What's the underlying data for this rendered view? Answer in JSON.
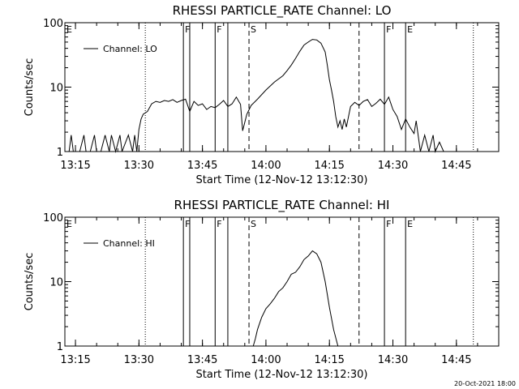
{
  "footer_date": "20-Oct-2021 18:00",
  "colors": {
    "line": "#000000",
    "background": "#ffffff"
  },
  "chart_data": [
    {
      "type": "line",
      "title": "RHESSI PARTICLE_RATE Channel: LO",
      "xlabel": "Start Time (12-Nov-12 13:12:30)",
      "ylabel": "Counts/sec",
      "yscale": "log",
      "ylim": [
        1,
        100
      ],
      "xlim": [
        "13:12:30",
        "14:55:00"
      ],
      "x_ticks": [
        "13:15",
        "13:30",
        "13:45",
        "14:00",
        "14:15",
        "14:30",
        "14:45"
      ],
      "y_ticks": [
        "1",
        "10",
        "100"
      ],
      "legend": {
        "position": "upper-left",
        "entries": [
          "Channel: LO"
        ]
      },
      "series": [
        {
          "name": "Channel: LO",
          "x": [
            "13:12:30",
            "13:13:30",
            "13:14:00",
            "13:14:30",
            "13:16:00",
            "13:17:00",
            "13:17:30",
            "13:18:30",
            "13:19:30",
            "13:20:00",
            "13:21:00",
            "13:22:00",
            "13:23:00",
            "13:23:30",
            "13:24:30",
            "13:25:30",
            "13:26:00",
            "13:27:30",
            "13:28:30",
            "13:29:00",
            "13:29:30",
            "13:30:00",
            "13:30:30",
            "13:31:00",
            "13:32:00",
            "13:33:00",
            "13:34:00",
            "13:35:00",
            "13:36:00",
            "13:37:00",
            "13:38:00",
            "13:39:00",
            "13:40:00",
            "13:41:00",
            "13:42:00",
            "13:43:00",
            "13:44:00",
            "13:45:00",
            "13:46:00",
            "13:47:00",
            "13:48:00",
            "13:49:00",
            "13:50:00",
            "13:51:00",
            "13:52:00",
            "13:53:00",
            "13:54:00",
            "13:54:30",
            "13:55:30",
            "13:56:30",
            "13:58:00",
            "14:00:00",
            "14:02:00",
            "14:04:00",
            "14:05:00",
            "14:06:00",
            "14:07:00",
            "14:08:00",
            "14:09:00",
            "14:10:00",
            "14:11:00",
            "14:12:00",
            "14:13:00",
            "14:14:00",
            "14:14:30",
            "14:15:00",
            "14:15:30",
            "14:16:00",
            "14:16:30",
            "14:17:00",
            "14:17:30",
            "14:18:00",
            "14:18:30",
            "14:19:00",
            "14:20:00",
            "14:21:00",
            "14:22:00",
            "14:23:00",
            "14:24:00",
            "14:25:00",
            "14:26:00",
            "14:27:00",
            "14:28:00",
            "14:29:00",
            "14:30:00",
            "14:31:00",
            "14:32:00",
            "14:33:00",
            "14:34:00",
            "14:35:00",
            "14:35:30",
            "14:36:30",
            "14:37:30",
            "14:38:30",
            "14:39:30",
            "14:40:00",
            "14:41:00",
            "14:42:00",
            "14:43:00"
          ],
          "y": [
            1,
            1,
            1.8,
            1,
            1,
            1.8,
            1,
            1,
            1.8,
            1,
            1,
            1.8,
            1,
            1.8,
            1,
            1.8,
            1,
            1.8,
            1,
            1.8,
            1,
            2.2,
            3.2,
            3.8,
            4.2,
            5.5,
            6,
            5.8,
            6.2,
            6,
            6.4,
            5.8,
            6.2,
            6.5,
            4.2,
            6,
            5.2,
            5.5,
            4.5,
            5,
            4.8,
            5.4,
            6.2,
            5,
            5.5,
            7,
            5.4,
            2.1,
            3.8,
            5.2,
            6.5,
            9,
            12,
            15,
            18,
            22,
            28,
            36,
            45,
            50,
            55,
            54,
            48,
            35,
            22,
            13,
            9,
            6,
            3.5,
            2.4,
            3,
            2.2,
            3.2,
            2.4,
            5,
            5.8,
            5.2,
            6,
            6.4,
            5,
            5.6,
            6.5,
            5.4,
            7,
            4.5,
            3.5,
            2.2,
            3.2,
            2.4,
            1.9,
            3,
            1,
            1.8,
            1,
            1.8,
            1,
            1.4,
            1,
            1
          ]
        }
      ],
      "markers": [
        {
          "time": "13:31:30",
          "style": "dotted",
          "label": ""
        },
        {
          "time": "13:40:30",
          "style": "solid",
          "label": "F"
        },
        {
          "time": "13:42:00",
          "style": "solid",
          "label": ""
        },
        {
          "time": "13:48:00",
          "style": "solid",
          "label": "F"
        },
        {
          "time": "13:51:00",
          "style": "solid",
          "label": ""
        },
        {
          "time": "13:56:00",
          "style": "dashed",
          "label": "S"
        },
        {
          "time": "14:22:00",
          "style": "dashed",
          "label": ""
        },
        {
          "time": "14:28:00",
          "style": "solid",
          "label": "F"
        },
        {
          "time": "14:33:00",
          "style": "solid",
          "label": "E"
        },
        {
          "time": "14:49:00",
          "style": "dotted",
          "label": ""
        }
      ],
      "corner_label": "E"
    },
    {
      "type": "line",
      "title": "RHESSI PARTICLE_RATE Channel: HI",
      "xlabel": "Start Time (12-Nov-12 13:12:30)",
      "ylabel": "Counts/sec",
      "yscale": "log",
      "ylim": [
        1,
        100
      ],
      "xlim": [
        "13:12:30",
        "14:55:00"
      ],
      "x_ticks": [
        "13:15",
        "13:30",
        "13:45",
        "14:00",
        "14:15",
        "14:30",
        "14:45"
      ],
      "y_ticks": [
        "1",
        "10",
        "100"
      ],
      "legend": {
        "position": "upper-left",
        "entries": [
          "Channel: HI"
        ]
      },
      "series": [
        {
          "name": "Channel: HI",
          "x": [
            "13:57:00",
            "13:57:30",
            "13:58:00",
            "13:59:00",
            "14:00:00",
            "14:01:00",
            "14:02:00",
            "14:03:00",
            "14:04:00",
            "14:05:00",
            "14:06:00",
            "14:07:00",
            "14:08:00",
            "14:09:00",
            "14:10:00",
            "14:11:00",
            "14:12:00",
            "14:13:00",
            "14:14:00",
            "14:15:00",
            "14:16:00",
            "14:17:00"
          ],
          "y": [
            1,
            1.3,
            1.8,
            2.8,
            3.8,
            4.5,
            5.5,
            7,
            8,
            10,
            13,
            14,
            17,
            22,
            25,
            30,
            27,
            20,
            10,
            4,
            1.8,
            1
          ]
        }
      ],
      "markers": [
        {
          "time": "13:31:30",
          "style": "dotted",
          "label": ""
        },
        {
          "time": "13:40:30",
          "style": "solid",
          "label": "F"
        },
        {
          "time": "13:42:00",
          "style": "solid",
          "label": ""
        },
        {
          "time": "13:48:00",
          "style": "solid",
          "label": "F"
        },
        {
          "time": "13:51:00",
          "style": "solid",
          "label": ""
        },
        {
          "time": "13:56:00",
          "style": "dashed",
          "label": "S"
        },
        {
          "time": "14:22:00",
          "style": "dashed",
          "label": ""
        },
        {
          "time": "14:28:00",
          "style": "solid",
          "label": "F"
        },
        {
          "time": "14:33:00",
          "style": "solid",
          "label": "E"
        },
        {
          "time": "14:49:00",
          "style": "dotted",
          "label": ""
        }
      ],
      "corner_label": "E"
    }
  ]
}
